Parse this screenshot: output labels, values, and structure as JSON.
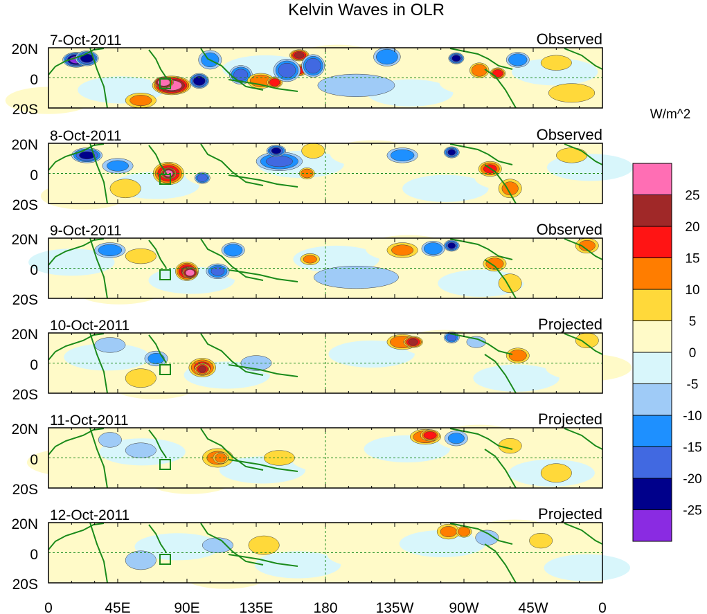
{
  "chart_data": {
    "type": "heatmap",
    "title": "Kelvin Waves in OLR",
    "x_ticks": [
      "0",
      "45E",
      "90E",
      "135E",
      "180",
      "135W",
      "90W",
      "45W",
      "0"
    ],
    "y_ticks": [
      "20N",
      "0",
      "20S"
    ],
    "xlim": [
      0,
      360
    ],
    "ylim": [
      -20,
      20
    ],
    "colorbar": {
      "units": "W/m^2",
      "levels": [
        -25,
        -20,
        -15,
        -10,
        -5,
        0,
        5,
        10,
        15,
        20,
        25
      ],
      "labels": [
        "25",
        "20",
        "15",
        "10",
        "5",
        "0",
        "-5",
        "-10",
        "-15",
        "-20",
        "-25"
      ],
      "colors": [
        "#8a2be2",
        "#00008b",
        "#4169e1",
        "#1e90ff",
        "#9fcbf7",
        "#d8f6fb",
        "#fffac8",
        "#ffd93a",
        "#ff7d00",
        "#ff1414",
        "#a02828",
        "#ff6eb4"
      ]
    },
    "panels": [
      {
        "date": "7-Oct-2011",
        "label": "Observed",
        "blobs": [
          [
            80,
            -5,
            10,
            5,
            28
          ],
          [
            75,
            -3,
            5,
            3,
            34
          ],
          [
            98,
            -2,
            5,
            4,
            -24
          ],
          [
            18,
            12,
            7,
            4,
            -26
          ],
          [
            25,
            13,
            6,
            4,
            -22
          ],
          [
            125,
            2,
            6,
            5,
            -16
          ],
          [
            138,
            -2,
            7,
            4,
            14
          ],
          [
            147,
            -3,
            4,
            3,
            18
          ],
          [
            163,
            15,
            5,
            3,
            20
          ],
          [
            163,
            5,
            4,
            3,
            17
          ],
          [
            172,
            8,
            6,
            6,
            -18
          ],
          [
            155,
            5,
            7,
            6,
            -17
          ],
          [
            105,
            12,
            6,
            5,
            -12
          ],
          [
            220,
            14,
            7,
            5,
            -14
          ],
          [
            265,
            13,
            4,
            3,
            -22
          ],
          [
            280,
            5,
            5,
            4,
            14
          ],
          [
            292,
            3,
            4,
            3,
            18
          ],
          [
            305,
            12,
            6,
            4,
            -14
          ],
          [
            330,
            10,
            8,
            4,
            8
          ],
          [
            60,
            -15,
            8,
            4,
            10
          ],
          [
            200,
            -5,
            20,
            6,
            -6
          ],
          [
            340,
            -10,
            12,
            5,
            8
          ]
        ]
      },
      {
        "date": "8-Oct-2011",
        "label": "Observed",
        "blobs": [
          [
            78,
            0,
            8,
            6,
            20
          ],
          [
            78,
            0,
            4,
            3,
            30
          ],
          [
            25,
            12,
            8,
            4,
            -20
          ],
          [
            45,
            5,
            8,
            4,
            -10
          ],
          [
            100,
            -3,
            4,
            3,
            -18
          ],
          [
            150,
            8,
            12,
            5,
            -15
          ],
          [
            148,
            15,
            5,
            3,
            -20
          ],
          [
            168,
            0,
            4,
            3,
            14
          ],
          [
            172,
            15,
            6,
            4,
            6
          ],
          [
            230,
            12,
            8,
            4,
            -12
          ],
          [
            262,
            14,
            4,
            3,
            -20
          ],
          [
            287,
            3,
            6,
            4,
            15
          ],
          [
            300,
            -10,
            6,
            5,
            10
          ],
          [
            190,
            -8,
            20,
            6,
            4
          ],
          [
            340,
            12,
            8,
            4,
            6
          ],
          [
            50,
            -10,
            8,
            5,
            8
          ]
        ]
      },
      {
        "date": "9-Oct-2011",
        "label": "Observed",
        "blobs": [
          [
            90,
            -2,
            6,
            5,
            20
          ],
          [
            92,
            -3,
            4,
            3,
            30
          ],
          [
            40,
            12,
            8,
            4,
            -12
          ],
          [
            110,
            -2,
            6,
            4,
            -15
          ],
          [
            120,
            12,
            6,
            4,
            -14
          ],
          [
            170,
            6,
            5,
            3,
            10
          ],
          [
            230,
            12,
            8,
            4,
            10
          ],
          [
            250,
            13,
            6,
            4,
            -14
          ],
          [
            262,
            15,
            4,
            3,
            -20
          ],
          [
            290,
            3,
            6,
            4,
            12
          ],
          [
            300,
            -10,
            6,
            5,
            8
          ],
          [
            350,
            15,
            6,
            4,
            10
          ],
          [
            60,
            8,
            8,
            4,
            8
          ],
          [
            200,
            -6,
            22,
            6,
            -5
          ]
        ]
      },
      {
        "date": "10-Oct-2011",
        "label": "Projected",
        "blobs": [
          [
            100,
            -3,
            7,
            5,
            16
          ],
          [
            100,
            -4,
            4,
            3,
            20
          ],
          [
            40,
            12,
            8,
            4,
            -8
          ],
          [
            70,
            3,
            6,
            4,
            -10
          ],
          [
            135,
            0,
            8,
            4,
            -6
          ],
          [
            230,
            14,
            8,
            4,
            14
          ],
          [
            237,
            14,
            5,
            3,
            20
          ],
          [
            262,
            17,
            4,
            3,
            -16
          ],
          [
            278,
            14,
            5,
            3,
            -8
          ],
          [
            305,
            5,
            6,
            4,
            12
          ],
          [
            350,
            15,
            6,
            4,
            8
          ],
          [
            60,
            -10,
            8,
            5,
            6
          ],
          [
            200,
            -6,
            22,
            6,
            -4
          ]
        ]
      },
      {
        "date": "11-Oct-2011",
        "label": "Projected",
        "blobs": [
          [
            110,
            0,
            8,
            5,
            10
          ],
          [
            112,
            0,
            4,
            3,
            14
          ],
          [
            60,
            5,
            8,
            4,
            -8
          ],
          [
            150,
            0,
            8,
            4,
            6
          ],
          [
            245,
            14,
            8,
            4,
            14
          ],
          [
            248,
            15,
            5,
            3,
            18
          ],
          [
            265,
            13,
            6,
            4,
            -10
          ],
          [
            300,
            8,
            6,
            4,
            8
          ],
          [
            330,
            -10,
            8,
            5,
            6
          ],
          [
            40,
            12,
            6,
            4,
            -6
          ],
          [
            200,
            -6,
            22,
            6,
            -4
          ]
        ]
      },
      {
        "date": "12-Oct-2011",
        "label": "Projected",
        "blobs": [
          [
            140,
            5,
            8,
            5,
            6
          ],
          [
            260,
            14,
            6,
            4,
            10
          ],
          [
            270,
            14,
            4,
            3,
            14
          ],
          [
            285,
            10,
            6,
            4,
            -8
          ],
          [
            60,
            -5,
            8,
            5,
            -6
          ],
          [
            110,
            5,
            8,
            4,
            -6
          ],
          [
            320,
            8,
            6,
            4,
            6
          ],
          [
            200,
            -6,
            22,
            6,
            -3
          ]
        ]
      }
    ]
  }
}
